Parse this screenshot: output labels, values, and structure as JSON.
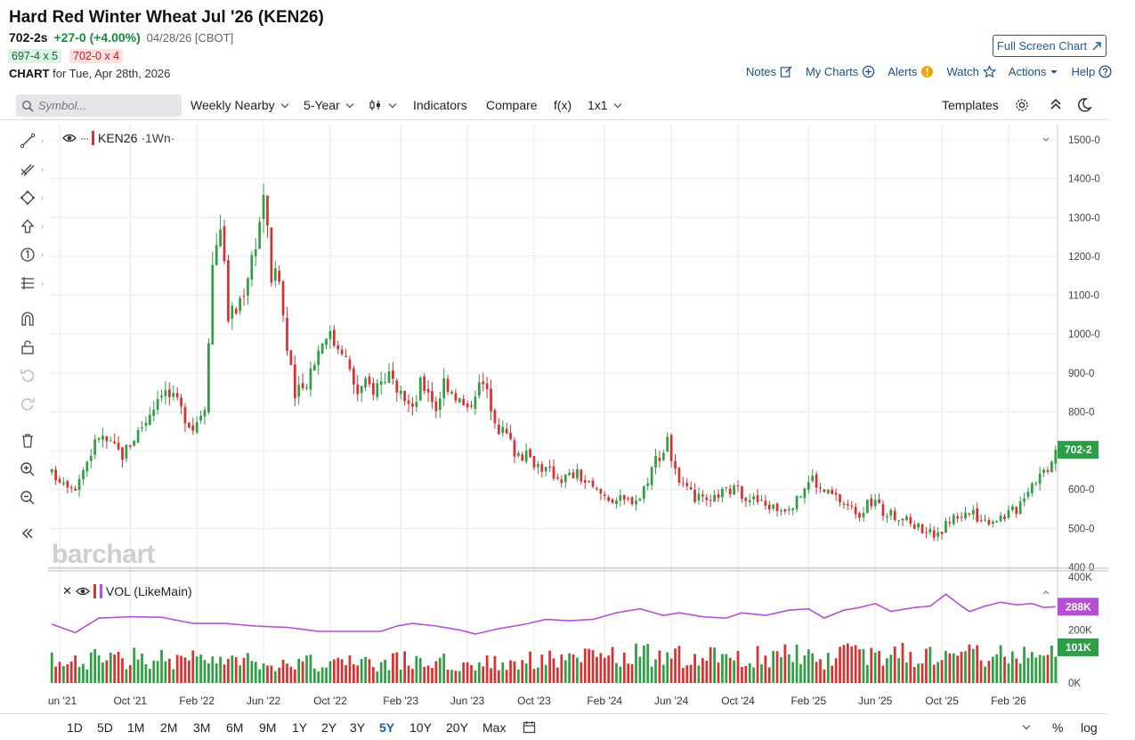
{
  "header": {
    "title": "Hard Red Winter Wheat Jul '26 (KEN26)",
    "last": "702-2s",
    "change": "+27-0 (+4.00%)",
    "date_exchange": "04/28/26 [CBOT]",
    "bid": "697-4 x 5",
    "ask": "702-0 x 4",
    "chart_label_bold": "CHART",
    "chart_label_rest": "for Tue, Apr 28th, 2026",
    "fullscreen": "Full Screen Chart"
  },
  "toplinks": {
    "notes": "Notes",
    "mycharts": "My Charts",
    "alerts": "Alerts",
    "watch": "Watch",
    "actions": "Actions",
    "help": "Help"
  },
  "toolbar": {
    "search_placeholder": "Symbol...",
    "period": "Weekly Nearby",
    "range": "5-Year",
    "indicators": "Indicators",
    "compare": "Compare",
    "fx": "f(x)",
    "layout": "1x1",
    "templates": "Templates"
  },
  "legend": {
    "symbol": "KEN26",
    "interval": "·1Wn·",
    "volume": "VOL (LikeMain)"
  },
  "watermark": "barchart",
  "bottom": {
    "ranges": [
      "1D",
      "5D",
      "1M",
      "2M",
      "3M",
      "6M",
      "9M",
      "1Y",
      "2Y",
      "3Y",
      "5Y",
      "10Y",
      "20Y",
      "Max"
    ],
    "active": "5Y",
    "pct": "%",
    "log": "log"
  },
  "colors": {
    "up": "#2ea043",
    "down": "#d93030",
    "volume_avg": "#b44fd6",
    "link": "#1d4f86"
  },
  "chart_data": {
    "type": "candlestick",
    "price_axis": [
      "1500-0",
      "1400-0",
      "1300-0",
      "1200-0",
      "1100-0",
      "1000-0",
      "900-0",
      "800-0",
      "700-0",
      "600-0",
      "500-0",
      "400-0"
    ],
    "price_range": [
      400,
      1500
    ],
    "last_price_label": "702-2",
    "last_price": 702.25,
    "volume_axis": [
      "400K",
      "200K",
      "0K"
    ],
    "volume_range": [
      0,
      400000
    ],
    "volume_avg_label": "288K",
    "volume_last_label": "101K",
    "x_labels": [
      "Jun '21",
      "Oct '21",
      "Feb '22",
      "Jun '22",
      "Oct '22",
      "Feb '23",
      "Jun '23",
      "Oct '23",
      "Feb '24",
      "Jun '24",
      "Oct '24",
      "Feb '25",
      "Jun '25",
      "Oct '25",
      "Feb '26"
    ],
    "x_label_weeks": [
      2,
      20,
      37,
      54,
      71,
      89,
      106,
      123,
      141,
      158,
      175,
      193,
      210,
      227,
      244
    ],
    "weeks": 257,
    "price_path": [
      [
        0,
        640
      ],
      [
        6,
        610
      ],
      [
        12,
        740
      ],
      [
        18,
        690
      ],
      [
        24,
        780
      ],
      [
        28,
        860
      ],
      [
        32,
        820
      ],
      [
        36,
        760
      ],
      [
        39,
        820
      ],
      [
        41,
        1180
      ],
      [
        43,
        1290
      ],
      [
        45,
        1050
      ],
      [
        47,
        1060
      ],
      [
        49,
        1120
      ],
      [
        51,
        1200
      ],
      [
        53,
        1290
      ],
      [
        54,
        1370
      ],
      [
        56,
        1150
      ],
      [
        58,
        1140
      ],
      [
        60,
        960
      ],
      [
        62,
        840
      ],
      [
        64,
        860
      ],
      [
        66,
        910
      ],
      [
        68,
        960
      ],
      [
        70,
        1010
      ],
      [
        72,
        980
      ],
      [
        74,
        970
      ],
      [
        76,
        900
      ],
      [
        78,
        850
      ],
      [
        80,
        870
      ],
      [
        82,
        860
      ],
      [
        84,
        880
      ],
      [
        86,
        900
      ],
      [
        88,
        830
      ],
      [
        90,
        840
      ],
      [
        92,
        800
      ],
      [
        94,
        870
      ],
      [
        96,
        860
      ],
      [
        98,
        810
      ],
      [
        100,
        880
      ],
      [
        102,
        860
      ],
      [
        104,
        830
      ],
      [
        106,
        800
      ],
      [
        108,
        860
      ],
      [
        110,
        870
      ],
      [
        112,
        820
      ],
      [
        114,
        760
      ],
      [
        116,
        740
      ],
      [
        118,
        700
      ],
      [
        122,
        680
      ],
      [
        126,
        650
      ],
      [
        130,
        630
      ],
      [
        134,
        640
      ],
      [
        138,
        600
      ],
      [
        142,
        580
      ],
      [
        146,
        570
      ],
      [
        150,
        580
      ],
      [
        152,
        630
      ],
      [
        154,
        680
      ],
      [
        156,
        700
      ],
      [
        157,
        740
      ],
      [
        158,
        680
      ],
      [
        160,
        610
      ],
      [
        164,
        580
      ],
      [
        168,
        560
      ],
      [
        170,
        590
      ],
      [
        174,
        600
      ],
      [
        178,
        580
      ],
      [
        182,
        560
      ],
      [
        186,
        550
      ],
      [
        190,
        570
      ],
      [
        192,
        610
      ],
      [
        194,
        630
      ],
      [
        196,
        600
      ],
      [
        198,
        590
      ],
      [
        200,
        580
      ],
      [
        204,
        550
      ],
      [
        206,
        540
      ],
      [
        208,
        560
      ],
      [
        210,
        570
      ],
      [
        212,
        540
      ],
      [
        216,
        530
      ],
      [
        220,
        510
      ],
      [
        224,
        490
      ],
      [
        226,
        480
      ],
      [
        228,
        510
      ],
      [
        230,
        530
      ],
      [
        234,
        540
      ],
      [
        238,
        520
      ],
      [
        242,
        530
      ],
      [
        246,
        550
      ],
      [
        248,
        590
      ],
      [
        250,
        620
      ],
      [
        252,
        640
      ],
      [
        254,
        660
      ],
      [
        256,
        702
      ]
    ],
    "volume_avg_path": [
      [
        0,
        222
      ],
      [
        6,
        190
      ],
      [
        12,
        245
      ],
      [
        20,
        250
      ],
      [
        28,
        248
      ],
      [
        36,
        225
      ],
      [
        44,
        225
      ],
      [
        52,
        215
      ],
      [
        60,
        210
      ],
      [
        68,
        195
      ],
      [
        76,
        195
      ],
      [
        84,
        195
      ],
      [
        88,
        215
      ],
      [
        92,
        225
      ],
      [
        98,
        215
      ],
      [
        104,
        200
      ],
      [
        108,
        185
      ],
      [
        114,
        205
      ],
      [
        120,
        220
      ],
      [
        126,
        240
      ],
      [
        132,
        235
      ],
      [
        138,
        240
      ],
      [
        144,
        265
      ],
      [
        150,
        280
      ],
      [
        156,
        255
      ],
      [
        160,
        265
      ],
      [
        166,
        250
      ],
      [
        172,
        245
      ],
      [
        176,
        265
      ],
      [
        182,
        255
      ],
      [
        188,
        275
      ],
      [
        193,
        280
      ],
      [
        197,
        245
      ],
      [
        202,
        275
      ],
      [
        206,
        285
      ],
      [
        210,
        300
      ],
      [
        214,
        270
      ],
      [
        220,
        285
      ],
      [
        224,
        290
      ],
      [
        228,
        335
      ],
      [
        232,
        290
      ],
      [
        234,
        270
      ],
      [
        238,
        290
      ],
      [
        242,
        305
      ],
      [
        246,
        295
      ],
      [
        250,
        300
      ],
      [
        253,
        285
      ],
      [
        256,
        288
      ]
    ]
  }
}
